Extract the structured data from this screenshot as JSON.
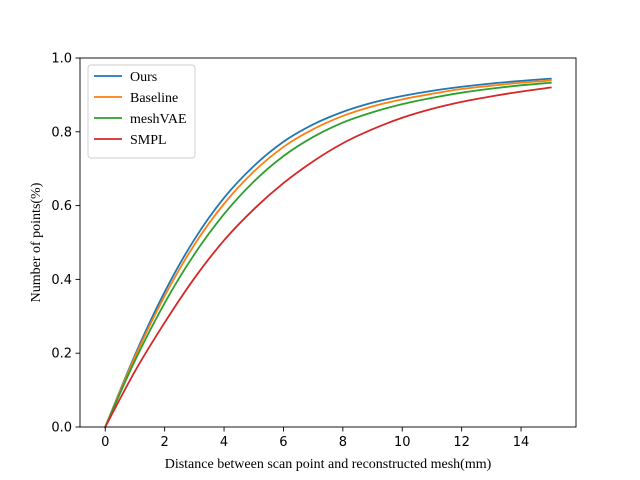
{
  "chart_data": {
    "type": "line",
    "xlabel": "Distance between scan point and reconstructed mesh(mm)",
    "ylabel": "Number of points(%)",
    "xlim": [
      -0.85,
      15.85
    ],
    "ylim": [
      0.0,
      1.0
    ],
    "xticks": [
      0,
      2,
      4,
      6,
      8,
      10,
      12,
      14
    ],
    "yticks": [
      0.0,
      0.2,
      0.4,
      0.6,
      0.8,
      1.0
    ],
    "xtick_labels": [
      "0",
      "2",
      "4",
      "6",
      "8",
      "10",
      "12",
      "14"
    ],
    "ytick_labels": [
      "0.0",
      "0.2",
      "0.4",
      "0.6",
      "0.8",
      "1.0"
    ],
    "grid": false,
    "legend_position": "top-left",
    "x": [
      0,
      1,
      2,
      3,
      4,
      5,
      6,
      7,
      8,
      9,
      10,
      11,
      12,
      13,
      14,
      15
    ],
    "series": [
      {
        "name": "Ours",
        "color": "#1f77b4",
        "values": [
          0.0,
          0.195,
          0.366,
          0.508,
          0.621,
          0.707,
          0.773,
          0.82,
          0.854,
          0.879,
          0.897,
          0.911,
          0.922,
          0.931,
          0.938,
          0.944
        ]
      },
      {
        "name": "Baseline",
        "color": "#ff7f0e",
        "values": [
          0.0,
          0.19,
          0.355,
          0.494,
          0.605,
          0.692,
          0.759,
          0.807,
          0.843,
          0.869,
          0.888,
          0.903,
          0.916,
          0.925,
          0.933,
          0.939
        ]
      },
      {
        "name": "meshVAE",
        "color": "#2ca02c",
        "values": [
          0.0,
          0.18,
          0.336,
          0.468,
          0.577,
          0.665,
          0.734,
          0.786,
          0.825,
          0.853,
          0.875,
          0.892,
          0.906,
          0.917,
          0.926,
          0.933
        ]
      },
      {
        "name": "SMPL",
        "color": "#d62728",
        "values": [
          0.0,
          0.151,
          0.283,
          0.403,
          0.506,
          0.59,
          0.661,
          0.72,
          0.769,
          0.807,
          0.838,
          0.862,
          0.881,
          0.896,
          0.909,
          0.92
        ]
      }
    ]
  }
}
